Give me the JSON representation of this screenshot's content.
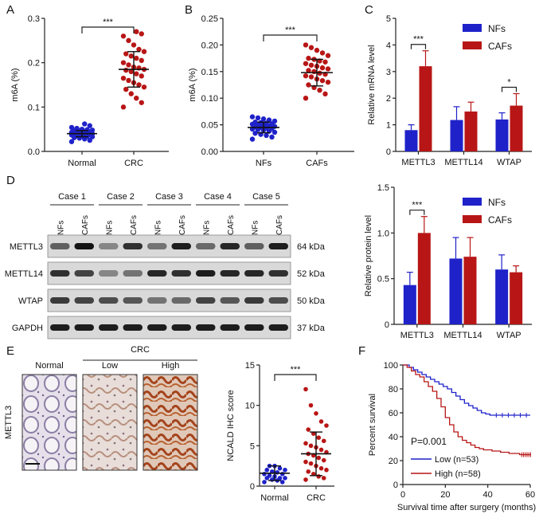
{
  "panel_labels": {
    "A": "A",
    "B": "B",
    "C": "C",
    "D": "D",
    "E": "E",
    "F": "F"
  },
  "colors": {
    "blue": "#1f22c9",
    "red": "#b81616",
    "axis": "#222222"
  },
  "chart_data": [
    {
      "id": "A",
      "type": "scatter",
      "ylabel": "m6A (%)",
      "ylim": [
        0,
        0.3
      ],
      "yticks": [
        "0.0",
        "0.1",
        "0.2",
        "0.3"
      ],
      "categories": [
        "Normal",
        "CRC"
      ],
      "groups": [
        {
          "name": "Normal",
          "mean": 0.04,
          "sd": 0.007,
          "color": "blue",
          "values": [
            0.022,
            0.025,
            0.028,
            0.03,
            0.031,
            0.033,
            0.034,
            0.035,
            0.036,
            0.037,
            0.038,
            0.038,
            0.039,
            0.04,
            0.04,
            0.041,
            0.042,
            0.042,
            0.043,
            0.044,
            0.045,
            0.046,
            0.047,
            0.048,
            0.049,
            0.05,
            0.052,
            0.054,
            0.058,
            0.062
          ]
        },
        {
          "name": "CRC",
          "mean": 0.185,
          "sd": 0.04,
          "color": "red",
          "values": [
            0.1,
            0.11,
            0.12,
            0.13,
            0.14,
            0.145,
            0.15,
            0.155,
            0.16,
            0.165,
            0.17,
            0.175,
            0.18,
            0.183,
            0.185,
            0.188,
            0.19,
            0.195,
            0.2,
            0.205,
            0.21,
            0.215,
            0.22,
            0.225,
            0.23,
            0.24,
            0.25,
            0.26,
            0.265,
            0.27
          ]
        }
      ],
      "significance": "***"
    },
    {
      "id": "B",
      "type": "scatter",
      "ylabel": "m6A (%)",
      "ylim": [
        0,
        0.25
      ],
      "yticks": [
        "0.00",
        "0.05",
        "0.10",
        "0.15",
        "0.20",
        "0.25"
      ],
      "categories": [
        "NFs",
        "CAFs"
      ],
      "groups": [
        {
          "name": "NFs",
          "mean": 0.045,
          "sd": 0.01,
          "color": "blue",
          "values": [
            0.023,
            0.027,
            0.03,
            0.032,
            0.034,
            0.036,
            0.038,
            0.04,
            0.041,
            0.042,
            0.043,
            0.044,
            0.045,
            0.046,
            0.047,
            0.048,
            0.049,
            0.05,
            0.051,
            0.052,
            0.053,
            0.054,
            0.055,
            0.057,
            0.059,
            0.061,
            0.063,
            0.065
          ]
        },
        {
          "name": "CAFs",
          "mean": 0.148,
          "sd": 0.025,
          "color": "red",
          "values": [
            0.1,
            0.108,
            0.115,
            0.12,
            0.125,
            0.13,
            0.133,
            0.136,
            0.14,
            0.142,
            0.145,
            0.147,
            0.15,
            0.152,
            0.155,
            0.157,
            0.16,
            0.162,
            0.165,
            0.168,
            0.17,
            0.173,
            0.175,
            0.18,
            0.185,
            0.19,
            0.195,
            0.2
          ]
        }
      ],
      "significance": "***"
    },
    {
      "id": "C",
      "type": "bar",
      "ylabel": "Relative mRNA level",
      "ylim": [
        0,
        5
      ],
      "yticks": [
        "0",
        "1",
        "2",
        "3",
        "4",
        "5"
      ],
      "categories": [
        "METTL3",
        "METTL14",
        "WTAP"
      ],
      "series": [
        {
          "name": "NFs",
          "color": "blue",
          "values": [
            0.8,
            1.18,
            1.2
          ],
          "errors": [
            0.2,
            0.5,
            0.25
          ]
        },
        {
          "name": "CAFs",
          "color": "red",
          "values": [
            3.2,
            1.5,
            1.72
          ],
          "errors": [
            0.58,
            0.35,
            0.45
          ]
        }
      ],
      "significance": [
        {
          "category": "METTL3",
          "label": "***"
        },
        {
          "category": "WTAP",
          "label": "*"
        }
      ]
    },
    {
      "id": "D",
      "type": "bar",
      "ylabel": "Relative protein level",
      "ylim": [
        0,
        1.5
      ],
      "yticks": [
        "0",
        "0.5",
        "1.0",
        "1.5"
      ],
      "categories": [
        "METTL3",
        "METTL14",
        "WTAP"
      ],
      "series": [
        {
          "name": "NFs",
          "color": "blue",
          "values": [
            0.43,
            0.72,
            0.6
          ],
          "errors": [
            0.14,
            0.23,
            0.16
          ]
        },
        {
          "name": "CAFs",
          "color": "red",
          "values": [
            1.0,
            0.74,
            0.57
          ],
          "errors": [
            0.18,
            0.21,
            0.07
          ]
        }
      ],
      "significance": [
        {
          "category": "METTL3",
          "label": "***"
        }
      ]
    },
    {
      "id": "E",
      "type": "scatter",
      "ylabel": "NCALD IHC score",
      "ylim": [
        0,
        15
      ],
      "yticks": [
        "0",
        "5",
        "10",
        "15"
      ],
      "categories": [
        "Normal",
        "CRC"
      ],
      "groups": [
        {
          "name": "Normal",
          "mean": 1.6,
          "sd": 0.9,
          "color": "blue",
          "values": [
            0.5,
            0.5,
            0.7,
            0.8,
            1.0,
            1.0,
            1.0,
            1.2,
            1.3,
            1.5,
            1.5,
            1.7,
            1.8,
            2.0,
            2.0,
            2.2,
            2.5,
            2.5
          ]
        },
        {
          "name": "CRC",
          "mean": 4.0,
          "sd": 2.7,
          "color": "red",
          "values": [
            0.8,
            1.0,
            1.2,
            1.5,
            1.8,
            2.0,
            2.2,
            2.5,
            2.8,
            3.0,
            3.2,
            3.5,
            3.8,
            4.0,
            4.2,
            4.5,
            4.8,
            5.0,
            5.3,
            5.6,
            6.0,
            6.5,
            7.0,
            7.5,
            8.0,
            9.0,
            10.0,
            12.0
          ]
        }
      ],
      "significance": "***"
    },
    {
      "id": "F",
      "type": "line",
      "xlabel": "Survival time after surgery (months)",
      "ylabel": "Percent survival",
      "xlim": [
        0,
        60
      ],
      "ylim": [
        0,
        100
      ],
      "xticks": [
        "0",
        "20",
        "40",
        "60"
      ],
      "yticks": [
        "0",
        "20",
        "40",
        "60",
        "80",
        "100"
      ],
      "annotation": "P=0.001",
      "series": [
        {
          "name": "Low (n=53)",
          "color": "blue",
          "x": [
            0,
            3,
            5,
            7,
            9,
            11,
            13,
            15,
            17,
            19,
            21,
            23,
            25,
            27,
            29,
            31,
            33,
            35,
            37,
            39,
            41,
            43,
            60
          ],
          "y": [
            100,
            98,
            96,
            94,
            92,
            90,
            88,
            86,
            84,
            82,
            80,
            77,
            74,
            71,
            68,
            66,
            64,
            62,
            60,
            59,
            58,
            58,
            58
          ]
        },
        {
          "name": "High (n=58)",
          "color": "red",
          "x": [
            0,
            2,
            4,
            6,
            8,
            10,
            12,
            14,
            16,
            18,
            20,
            22,
            24,
            26,
            28,
            30,
            32,
            34,
            36,
            38,
            42,
            46,
            50,
            55,
            60
          ],
          "y": [
            100,
            98,
            95,
            92,
            90,
            86,
            82,
            78,
            72,
            65,
            56,
            50,
            44,
            40,
            37,
            35,
            33,
            31,
            30,
            29,
            28,
            27,
            26,
            25,
            25
          ]
        }
      ]
    }
  ],
  "blot": {
    "cases": [
      "Case 1",
      "Case 2",
      "Case 3",
      "Case 4",
      "Case 5"
    ],
    "lane_labels": [
      "NFs",
      "CAFs"
    ],
    "proteins": [
      {
        "name": "METTL3",
        "kda": "64 kDa"
      },
      {
        "name": "METTL14",
        "kda": "52 kDa"
      },
      {
        "name": "WTAP",
        "kda": "50 kDa"
      },
      {
        "name": "GAPDH",
        "kda": "37 kDa"
      }
    ],
    "intensity": [
      [
        0.55,
        0.95,
        0.35,
        0.8,
        0.45,
        0.9,
        0.5,
        0.85,
        0.55,
        0.9
      ],
      [
        0.8,
        0.7,
        0.35,
        0.45,
        0.85,
        0.8,
        0.9,
        0.85,
        0.85,
        0.8
      ],
      [
        0.75,
        0.7,
        0.65,
        0.6,
        0.45,
        0.5,
        0.7,
        0.6,
        0.75,
        0.65
      ],
      [
        0.9,
        0.9,
        0.9,
        0.9,
        0.9,
        0.9,
        0.9,
        0.9,
        0.9,
        0.9
      ]
    ]
  },
  "ihc": {
    "row_label": "METTL3",
    "group_label": "CRC",
    "images": [
      "Normal",
      "Low",
      "High"
    ]
  }
}
